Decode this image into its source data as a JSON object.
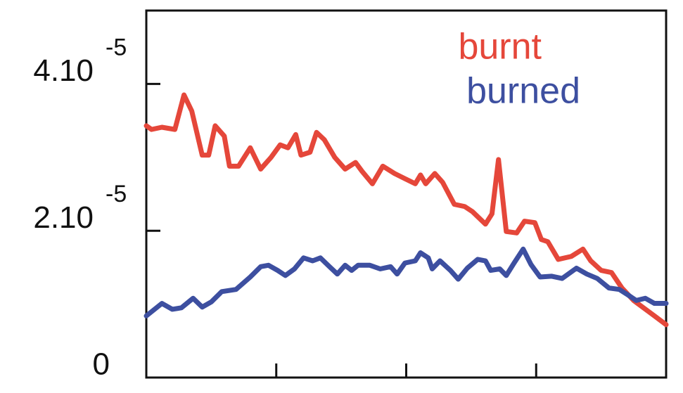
{
  "chart_data": {
    "type": "line",
    "xlim": [
      0,
      4
    ],
    "xticks": [
      1,
      2,
      3
    ],
    "ylim": [
      0,
      5e-05
    ],
    "yticks": [
      0,
      {
        "value": 2e-05,
        "label": "2.10",
        "exponent": "-5"
      },
      {
        "value": 4e-05,
        "label": "4.10",
        "exponent": "-5"
      }
    ],
    "legend": "upper right",
    "series": [
      {
        "name": "burnt",
        "color": "#e5473a",
        "x": [
          0.0,
          0.04,
          0.12,
          0.22,
          0.29,
          0.35,
          0.43,
          0.48,
          0.53,
          0.6,
          0.64,
          0.71,
          0.8,
          0.88,
          0.96,
          1.03,
          1.09,
          1.15,
          1.19,
          1.26,
          1.31,
          1.37,
          1.45,
          1.53,
          1.61,
          1.66,
          1.74,
          1.82,
          1.91,
          1.99,
          2.07,
          2.11,
          2.15,
          2.22,
          2.28,
          2.37,
          2.45,
          2.51,
          2.61,
          2.66,
          2.71,
          2.77,
          2.85,
          2.91,
          2.99,
          3.04,
          3.09,
          3.17,
          3.27,
          3.36,
          3.42,
          3.5,
          3.58,
          3.66,
          3.75,
          3.91,
          4.0
        ],
        "values": [
          3.43e-05,
          3.38e-05,
          3.41e-05,
          3.38e-05,
          3.85e-05,
          3.63e-05,
          3.03e-05,
          3.03e-05,
          3.43e-05,
          3.29e-05,
          2.88e-05,
          2.88e-05,
          3.13e-05,
          2.84e-05,
          3e-05,
          3.17e-05,
          3.13e-05,
          3.31e-05,
          3.03e-05,
          3.07e-05,
          3.34e-05,
          3.24e-05,
          3e-05,
          2.84e-05,
          2.93e-05,
          2.81e-05,
          2.64e-05,
          2.88e-05,
          2.78e-05,
          2.71e-05,
          2.64e-05,
          2.76e-05,
          2.64e-05,
          2.78e-05,
          2.66e-05,
          2.36e-05,
          2.33e-05,
          2.26e-05,
          2.09e-05,
          2.23e-05,
          2.97e-05,
          1.99e-05,
          1.97e-05,
          2.13e-05,
          2.11e-05,
          1.88e-05,
          1.85e-05,
          1.61e-05,
          1.65e-05,
          1.75e-05,
          1.59e-05,
          1.46e-05,
          1.43e-05,
          1.22e-05,
          1.05e-05,
          8.4e-06,
          7.2e-06
        ]
      },
      {
        "name": "burned",
        "color": "#3d4fa0",
        "x": [
          0.0,
          0.12,
          0.2,
          0.27,
          0.36,
          0.43,
          0.5,
          0.58,
          0.69,
          0.8,
          0.88,
          0.94,
          1.01,
          1.07,
          1.14,
          1.21,
          1.28,
          1.34,
          1.41,
          1.47,
          1.53,
          1.58,
          1.63,
          1.72,
          1.8,
          1.88,
          1.93,
          1.99,
          2.07,
          2.11,
          2.17,
          2.2,
          2.26,
          2.34,
          2.4,
          2.47,
          2.55,
          2.61,
          2.65,
          2.72,
          2.77,
          2.83,
          2.9,
          2.96,
          3.03,
          3.12,
          3.2,
          3.31,
          3.39,
          3.47,
          3.56,
          3.64,
          3.72,
          3.77,
          3.84,
          3.91,
          4.0
        ],
        "values": [
          8.4e-06,
          1.01e-05,
          9.3e-06,
          9.5e-06,
          1.08e-05,
          9.6e-06,
          1.03e-05,
          1.17e-05,
          1.2e-05,
          1.37e-05,
          1.51e-05,
          1.53e-05,
          1.46e-05,
          1.39e-05,
          1.48e-05,
          1.63e-05,
          1.59e-05,
          1.63e-05,
          1.51e-05,
          1.41e-05,
          1.53e-05,
          1.46e-05,
          1.53e-05,
          1.53e-05,
          1.48e-05,
          1.51e-05,
          1.41e-05,
          1.56e-05,
          1.59e-05,
          1.7e-05,
          1.63e-05,
          1.48e-05,
          1.59e-05,
          1.46e-05,
          1.34e-05,
          1.49e-05,
          1.61e-05,
          1.59e-05,
          1.46e-05,
          1.48e-05,
          1.39e-05,
          1.56e-05,
          1.75e-05,
          1.54e-05,
          1.37e-05,
          1.38e-05,
          1.35e-05,
          1.49e-05,
          1.41e-05,
          1.35e-05,
          1.22e-05,
          1.2e-05,
          1.11e-05,
          1.05e-05,
          1.08e-05,
          1.01e-05,
          1.01e-05
        ]
      }
    ]
  }
}
